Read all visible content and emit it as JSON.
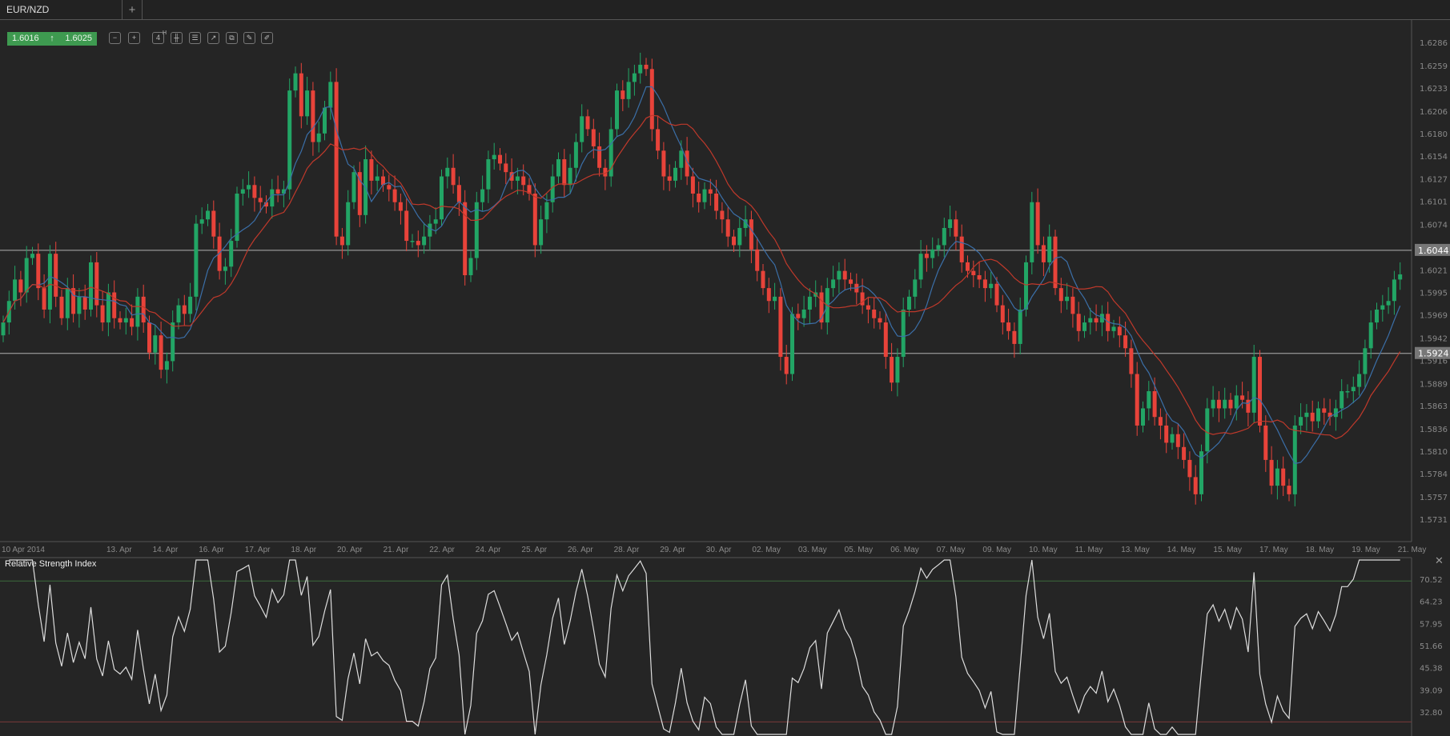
{
  "tabs": [
    {
      "label": "EUR/NZD"
    },
    {
      "label": "+"
    }
  ],
  "quote": {
    "bid": "1.6016",
    "ask": "1.6025",
    "direction_icon": "arrow-up-icon",
    "color": "#3e9a50"
  },
  "toolbar": [
    {
      "icon": "zoom-out-icon",
      "glyph": "−"
    },
    {
      "icon": "zoom-in-icon",
      "glyph": "+"
    },
    {
      "icon": "timeframe-icon",
      "glyph": "4"
    },
    {
      "icon": "candlestick-type-icon",
      "glyph": "╫"
    },
    {
      "icon": "indicators-icon",
      "glyph": "☰"
    },
    {
      "icon": "chart-template-icon",
      "glyph": "↗"
    },
    {
      "icon": "copy-icon",
      "glyph": "⧉"
    },
    {
      "icon": "edit-icon",
      "glyph": "✎"
    },
    {
      "icon": "draw-icon",
      "glyph": "✐"
    }
  ],
  "timeframe_superscript": "H",
  "chart_data": [
    {
      "type": "candlestick",
      "symbol": "EUR/NZD",
      "y_ticks": [
        "1.6286",
        "1.6259",
        "1.6233",
        "1.6206",
        "1.6180",
        "1.6154",
        "1.6127",
        "1.6101",
        "1.6074",
        "1.6021",
        "1.5995",
        "1.5969",
        "1.5942",
        "1.5916",
        "1.5889",
        "1.5863",
        "1.5836",
        "1.5810",
        "1.5784",
        "1.5757",
        "1.5731"
      ],
      "ylim": [
        1.5731,
        1.6286
      ],
      "x_ticks": [
        "10 Apr 2014",
        "13. Apr",
        "14. Apr",
        "16. Apr",
        "17. Apr",
        "18. Apr",
        "20. Apr",
        "21. Apr",
        "22. Apr",
        "24. Apr",
        "25. Apr",
        "26. Apr",
        "28. Apr",
        "29. Apr",
        "30. Apr",
        "02. May",
        "03. May",
        "05. May",
        "06. May",
        "07. May",
        "09. May",
        "10. May",
        "11. May",
        "13. May",
        "14. May",
        "15. May",
        "17. May",
        "18. May",
        "19. May",
        "21. May"
      ],
      "horizontal_lines": [
        "1.6044",
        "1.5924"
      ],
      "colors": {
        "up": "#22a565",
        "down": "#e8433a",
        "ma_fast": "#3b6fa8",
        "ma_slow": "#c0392b"
      },
      "close": [
        1.596,
        1.5985,
        1.601,
        1.5995,
        1.6035,
        1.604,
        1.6,
        1.5975,
        1.604,
        1.599,
        1.5965,
        1.6,
        1.597,
        1.599,
        1.5975,
        1.603,
        1.598,
        1.596,
        1.5995,
        1.5965,
        1.596,
        1.5965,
        1.5955,
        1.599,
        1.596,
        1.5925,
        1.5945,
        1.5905,
        1.5915,
        1.596,
        1.598,
        1.597,
        1.599,
        1.6075,
        1.608,
        1.609,
        1.606,
        1.602,
        1.6025,
        1.6055,
        1.611,
        1.6115,
        1.612,
        1.6105,
        1.61,
        1.6095,
        1.6115,
        1.611,
        1.6115,
        1.623,
        1.625,
        1.62,
        1.623,
        1.617,
        1.618,
        1.621,
        1.624,
        1.606,
        1.605,
        1.61,
        1.6135,
        1.6085,
        1.615,
        1.6125,
        1.613,
        1.612,
        1.6115,
        1.61,
        1.609,
        1.6055,
        1.6055,
        1.605,
        1.606,
        1.6075,
        1.608,
        1.613,
        1.614,
        1.612,
        1.61,
        1.6015,
        1.6035,
        1.61,
        1.6115,
        1.615,
        1.6155,
        1.6145,
        1.6135,
        1.6125,
        1.613,
        1.612,
        1.611,
        1.605,
        1.608,
        1.61,
        1.613,
        1.615,
        1.612,
        1.614,
        1.617,
        1.62,
        1.6185,
        1.6165,
        1.614,
        1.613,
        1.6185,
        1.623,
        1.622,
        1.624,
        1.625,
        1.626,
        1.6255,
        1.6185,
        1.616,
        1.613,
        1.6125,
        1.614,
        1.616,
        1.613,
        1.611,
        1.61,
        1.6115,
        1.611,
        1.609,
        1.608,
        1.606,
        1.605,
        1.607,
        1.608,
        1.6045,
        1.602,
        1.6,
        1.5985,
        1.599,
        1.592,
        1.59,
        1.597,
        1.5965,
        1.5975,
        1.599,
        1.5995,
        1.596,
        1.6,
        1.601,
        1.602,
        1.601,
        1.6005,
        1.5995,
        1.598,
        1.5975,
        1.5965,
        1.596,
        1.592,
        1.589,
        1.592,
        1.5975,
        1.599,
        1.601,
        1.604,
        1.6035,
        1.6045,
        1.605,
        1.607,
        1.608,
        1.606,
        1.603,
        1.602,
        1.6015,
        1.601,
        1.6,
        1.6005,
        1.598,
        1.596,
        1.595,
        1.5935,
        1.5975,
        1.603,
        1.61,
        1.605,
        1.603,
        1.606,
        1.6,
        1.5985,
        1.599,
        1.597,
        1.595,
        1.596,
        1.5965,
        1.596,
        1.597,
        1.595,
        1.5955,
        1.5945,
        1.593,
        1.59,
        1.584,
        1.586,
        1.588,
        1.585,
        1.584,
        1.582,
        1.583,
        1.5815,
        1.58,
        1.578,
        1.576,
        1.581,
        1.586,
        1.587,
        1.586,
        1.587,
        1.586,
        1.5875,
        1.587,
        1.5855,
        1.592,
        1.584,
        1.58,
        1.577,
        1.579,
        1.577,
        1.576,
        1.584,
        1.585,
        1.5855,
        1.5845,
        1.586,
        1.5855,
        1.585,
        1.586,
        1.588,
        1.588,
        1.5885,
        1.59,
        1.593,
        1.596,
        1.5975,
        1.598,
        1.5985,
        1.601,
        1.6016
      ]
    },
    {
      "type": "line",
      "title": "Relative Strength Index",
      "y_ticks": [
        "70.52",
        "64.23",
        "57.95",
        "51.66",
        "45.38",
        "39.09",
        "32.80"
      ],
      "levels": [
        70,
        30
      ],
      "colors": {
        "line": "#dddddd",
        "upper": "#3d6b3d",
        "lower": "#7a3a3a"
      }
    }
  ]
}
